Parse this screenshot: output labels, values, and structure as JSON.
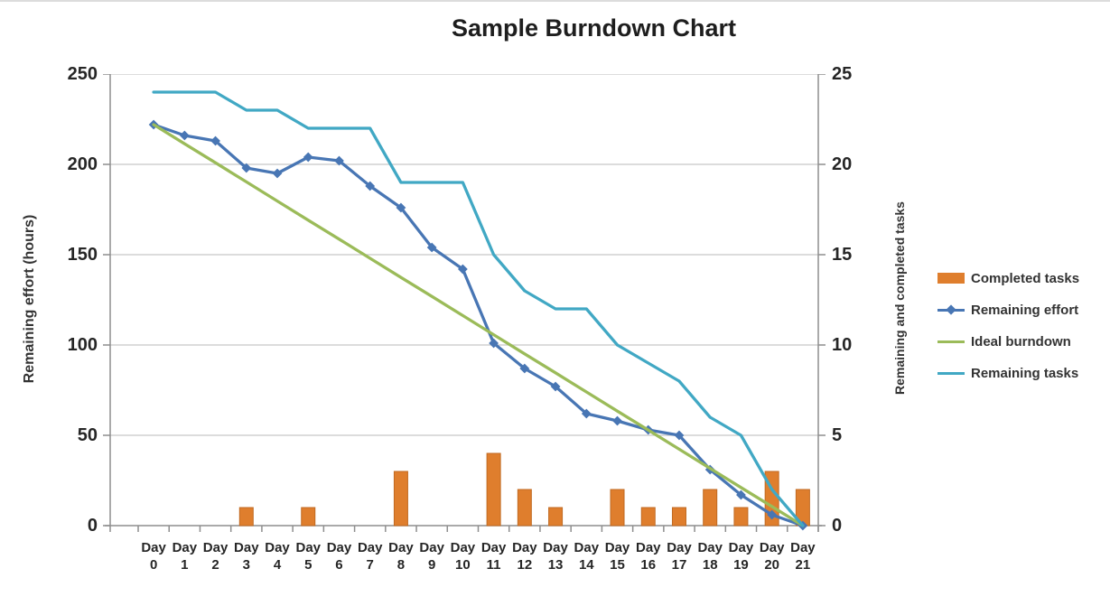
{
  "title": "Sample Burndown Chart",
  "chart_data": {
    "type": "combo",
    "title": "Sample Burndown Chart",
    "categories": [
      "Day 0",
      "Day 1",
      "Day 2",
      "Day 3",
      "Day 4",
      "Day 5",
      "Day 6",
      "Day 7",
      "Day 8",
      "Day 9",
      "Day 10",
      "Day 11",
      "Day 12",
      "Day 13",
      "Day 14",
      "Day 15",
      "Day 16",
      "Day 17",
      "Day 18",
      "Day 19",
      "Day 20",
      "Day 21"
    ],
    "left_axis": {
      "label": "Remaining effort (hours)",
      "min": 0,
      "max": 250,
      "ticks": [
        0,
        50,
        100,
        150,
        200,
        250
      ]
    },
    "right_axis": {
      "label": "Remaining and completed tasks",
      "min": 0,
      "max": 25,
      "ticks": [
        0,
        5,
        10,
        15,
        20,
        25
      ]
    },
    "grid": true,
    "legend_position": "right",
    "colors": {
      "gridline": "#c6c6c6",
      "axis": "#8e8e8e"
    },
    "series": [
      {
        "key": "completed-tasks",
        "name": "Completed tasks",
        "type": "bar",
        "axis": "right",
        "color": "#df7e2d",
        "border": "#c06a22",
        "values": [
          0,
          0,
          0,
          1,
          0,
          1,
          0,
          0,
          3,
          0,
          0,
          4,
          2,
          1,
          0,
          2,
          1,
          1,
          2,
          1,
          3,
          2
        ]
      },
      {
        "key": "remaining-effort",
        "name": "Remaining effort",
        "type": "line",
        "marker": "diamond",
        "axis": "left",
        "color": "#4876b4",
        "values": [
          222,
          216,
          213,
          198,
          195,
          204,
          202,
          188,
          176,
          154,
          142,
          101,
          87,
          77,
          62,
          58,
          53,
          50,
          31,
          17,
          6,
          0
        ]
      },
      {
        "key": "ideal-burndown",
        "name": "Ideal burndown",
        "type": "line",
        "axis": "left",
        "color": "#9bbb59",
        "values": [
          222,
          211.4,
          200.9,
          190.3,
          179.7,
          169.1,
          158.6,
          148,
          137.4,
          126.9,
          116.3,
          105.7,
          95.1,
          84.6,
          74,
          63.4,
          52.9,
          42.3,
          31.7,
          21.1,
          10.6,
          0
        ]
      },
      {
        "key": "remaining-tasks",
        "name": "Remaining tasks",
        "type": "line",
        "axis": "right",
        "color": "#41a8c4",
        "values": [
          24,
          24,
          24,
          23,
          23,
          22,
          22,
          22,
          19,
          19,
          19,
          15,
          13,
          12,
          12,
          10,
          9,
          8,
          6,
          5,
          2,
          0
        ]
      }
    ]
  }
}
